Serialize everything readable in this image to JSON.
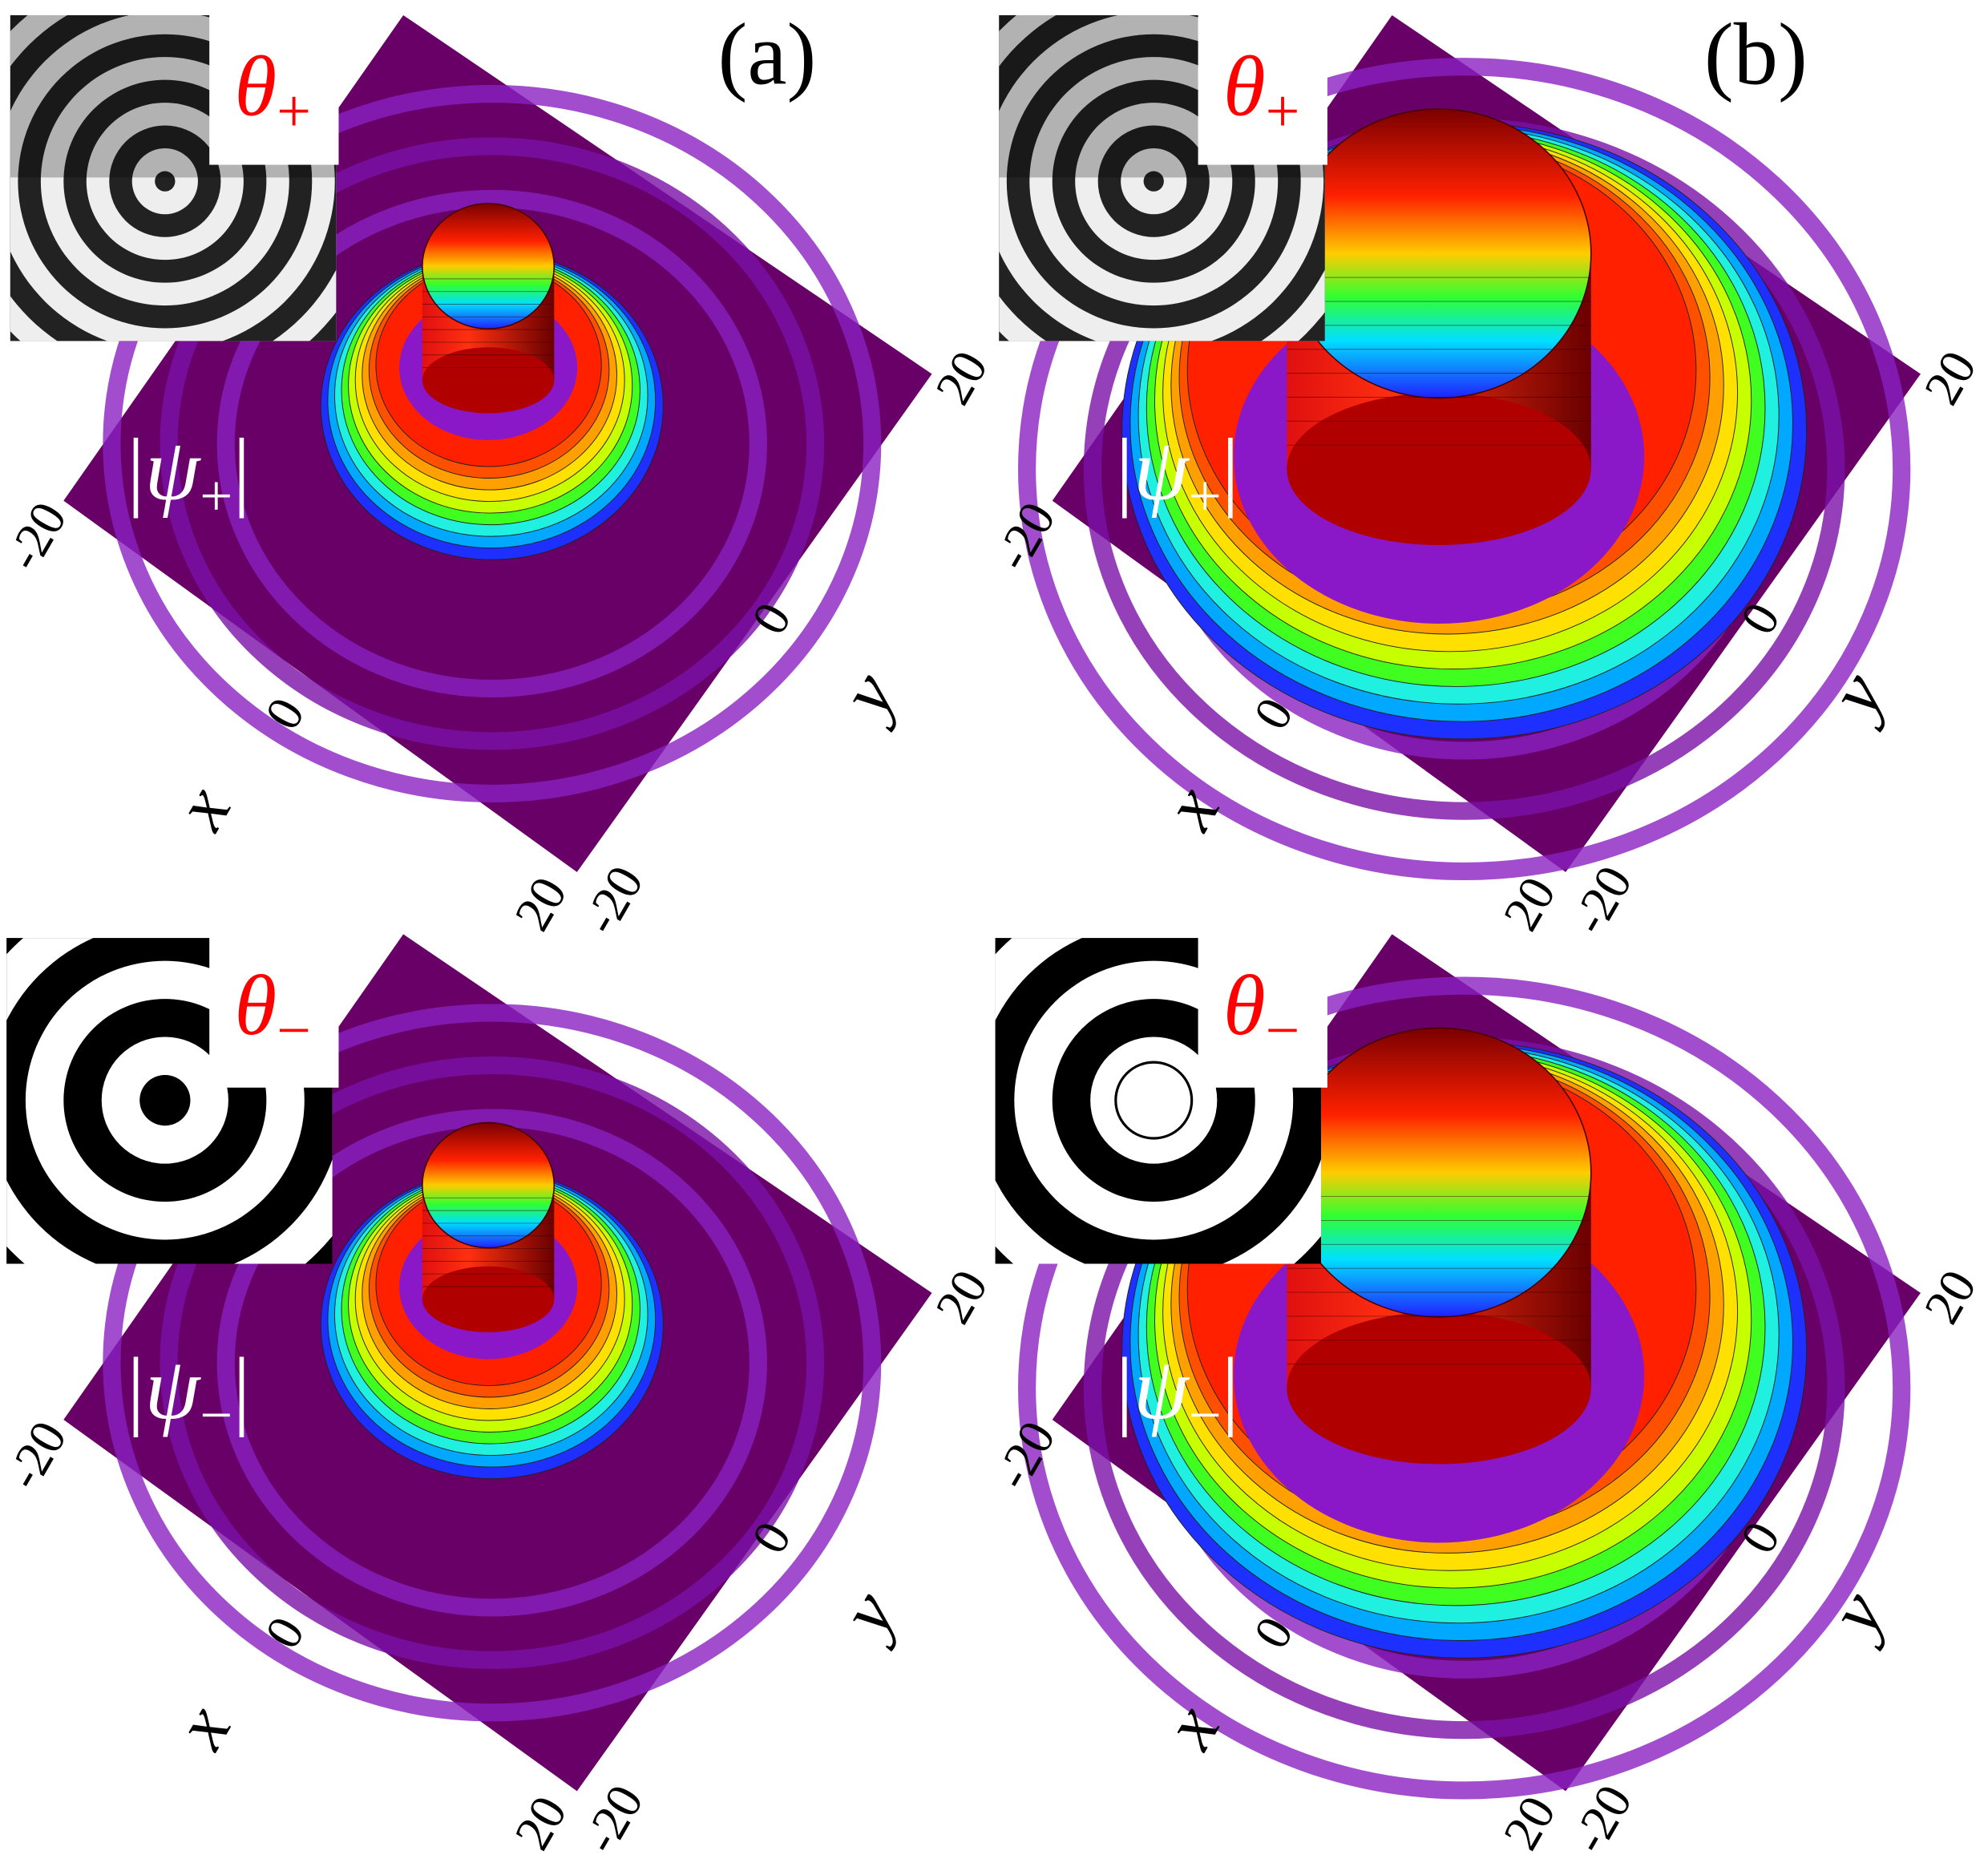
{
  "panels": [
    {
      "label": "(a)",
      "phase_label": {
        "symbol": "θ",
        "sub": "+"
      },
      "amplitude_label": {
        "open": "|",
        "symbol": "ψ",
        "sub": "+",
        "close": "|"
      },
      "x_axis": {
        "label": "x",
        "ticks": [
          "-20",
          "0",
          "20"
        ]
      },
      "y_axis": {
        "label": "y",
        "ticks": [
          "20",
          "0",
          "-20"
        ]
      }
    },
    {
      "label": "(b)",
      "phase_label": {
        "symbol": "θ",
        "sub": "+"
      },
      "amplitude_label": {
        "open": "|",
        "symbol": "ψ",
        "sub": "+",
        "close": "|"
      },
      "x_axis": {
        "label": "x",
        "ticks": [
          "-20",
          "0",
          "20"
        ]
      },
      "y_axis": {
        "label": "y",
        "ticks": [
          "20",
          "0",
          "-20"
        ]
      }
    },
    {
      "phase_label": {
        "symbol": "θ",
        "sub": "−"
      },
      "amplitude_label": {
        "open": "|",
        "symbol": "ψ",
        "sub": "−",
        "close": "|"
      },
      "x_axis": {
        "label": "x",
        "ticks": [
          "-20",
          "0",
          "20"
        ]
      },
      "y_axis": {
        "label": "y",
        "ticks": [
          "20",
          "0",
          "-20"
        ]
      }
    },
    {
      "phase_label": {
        "symbol": "θ",
        "sub": "−"
      },
      "amplitude_label": {
        "open": "|",
        "symbol": "ψ",
        "sub": "−",
        "close": "|"
      },
      "x_axis": {
        "label": "x",
        "ticks": [
          "-20",
          "0",
          "20"
        ]
      },
      "y_axis": {
        "label": "y",
        "ticks": [
          "20",
          "0",
          "-20"
        ]
      }
    }
  ]
}
